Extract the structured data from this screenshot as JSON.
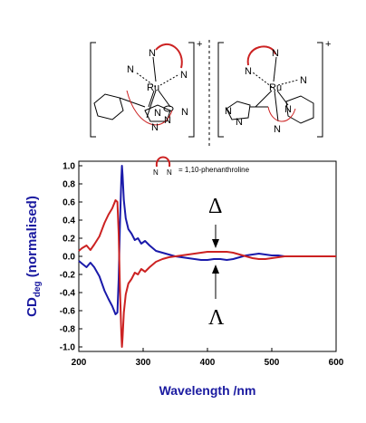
{
  "molecules": {
    "left": {
      "charge": "+",
      "metal": "Ru",
      "n_labels": [
        "N",
        "N",
        "N",
        "N",
        "N",
        "N",
        "N"
      ]
    },
    "right": {
      "charge": "+",
      "metal": "Ru",
      "n_labels": [
        "N",
        "N",
        "N",
        "N",
        "N",
        "N",
        "N"
      ]
    }
  },
  "legend": {
    "n1": "N",
    "n2": "N",
    "text": "= 1,10-phenanthroline",
    "arc_color": "#cc2222"
  },
  "annotations": {
    "delta": "Δ",
    "lambda": "Λ"
  },
  "chart_data": {
    "type": "line",
    "xlabel": "Wavelength /nm",
    "ylabel_main": "CD",
    "ylabel_sub": "deg",
    "ylabel_rest": " (normalised)",
    "xlim": [
      200,
      600
    ],
    "ylim": [
      -1.05,
      1.05
    ],
    "xticks": [
      200,
      300,
      400,
      500,
      600
    ],
    "yticks": [
      -1.0,
      -0.8,
      -0.6,
      -0.4,
      -0.2,
      0.0,
      0.2,
      0.4,
      0.6,
      0.8,
      1.0
    ],
    "ytick_labels": [
      "-1.0",
      "-0.8",
      "-0.6",
      "-0.4",
      "-0.2",
      "0.0",
      "0.2",
      "0.4",
      "0.6",
      "0.8",
      "1.0"
    ],
    "series": [
      {
        "color": "#1a1aaa",
        "x": [
          200,
          205,
          212,
          218,
          224,
          232,
          240,
          246,
          252,
          257,
          260,
          262,
          264,
          266,
          267,
          268,
          270,
          273,
          277,
          282,
          287,
          292,
          297,
          303,
          310,
          320,
          330,
          340,
          350,
          360,
          370,
          380,
          390,
          400,
          410,
          420,
          430,
          440,
          450,
          460,
          470,
          480,
          490,
          500,
          510,
          520,
          530,
          540,
          550,
          560,
          570,
          580,
          590,
          600
        ],
        "y": [
          -0.05,
          -0.08,
          -0.12,
          -0.07,
          -0.12,
          -0.22,
          -0.38,
          -0.47,
          -0.55,
          -0.64,
          -0.62,
          -0.25,
          0.35,
          0.85,
          1.0,
          0.9,
          0.62,
          0.42,
          0.3,
          0.25,
          0.18,
          0.2,
          0.14,
          0.17,
          0.12,
          0.06,
          0.04,
          0.02,
          0.0,
          -0.01,
          -0.02,
          -0.03,
          -0.04,
          -0.04,
          -0.03,
          -0.03,
          -0.04,
          -0.03,
          -0.01,
          0.01,
          0.02,
          0.03,
          0.02,
          0.01,
          0.01,
          0.0,
          0.0,
          0.0,
          0.0,
          0.0,
          0.0,
          0.0,
          0.0,
          0.0
        ]
      },
      {
        "color": "#cc2222",
        "x": [
          200,
          205,
          212,
          218,
          224,
          232,
          240,
          246,
          252,
          257,
          260,
          262,
          264,
          266,
          267,
          268,
          270,
          273,
          277,
          282,
          287,
          292,
          297,
          303,
          310,
          320,
          330,
          340,
          350,
          360,
          370,
          380,
          390,
          400,
          410,
          420,
          430,
          440,
          450,
          460,
          470,
          480,
          490,
          500,
          510,
          520,
          530,
          540,
          550,
          560,
          570,
          580,
          590,
          600
        ],
        "y": [
          0.06,
          0.09,
          0.12,
          0.07,
          0.13,
          0.22,
          0.37,
          0.46,
          0.53,
          0.62,
          0.6,
          0.25,
          -0.35,
          -0.85,
          -1.0,
          -0.9,
          -0.62,
          -0.42,
          -0.3,
          -0.25,
          -0.18,
          -0.2,
          -0.14,
          -0.17,
          -0.12,
          -0.06,
          -0.03,
          -0.01,
          0.0,
          0.01,
          0.02,
          0.03,
          0.04,
          0.05,
          0.05,
          0.05,
          0.05,
          0.04,
          0.02,
          0.0,
          -0.02,
          -0.03,
          -0.03,
          -0.02,
          -0.01,
          0.0,
          0.0,
          0.0,
          0.0,
          0.0,
          0.0,
          0.0,
          0.0,
          0.0
        ]
      }
    ]
  }
}
